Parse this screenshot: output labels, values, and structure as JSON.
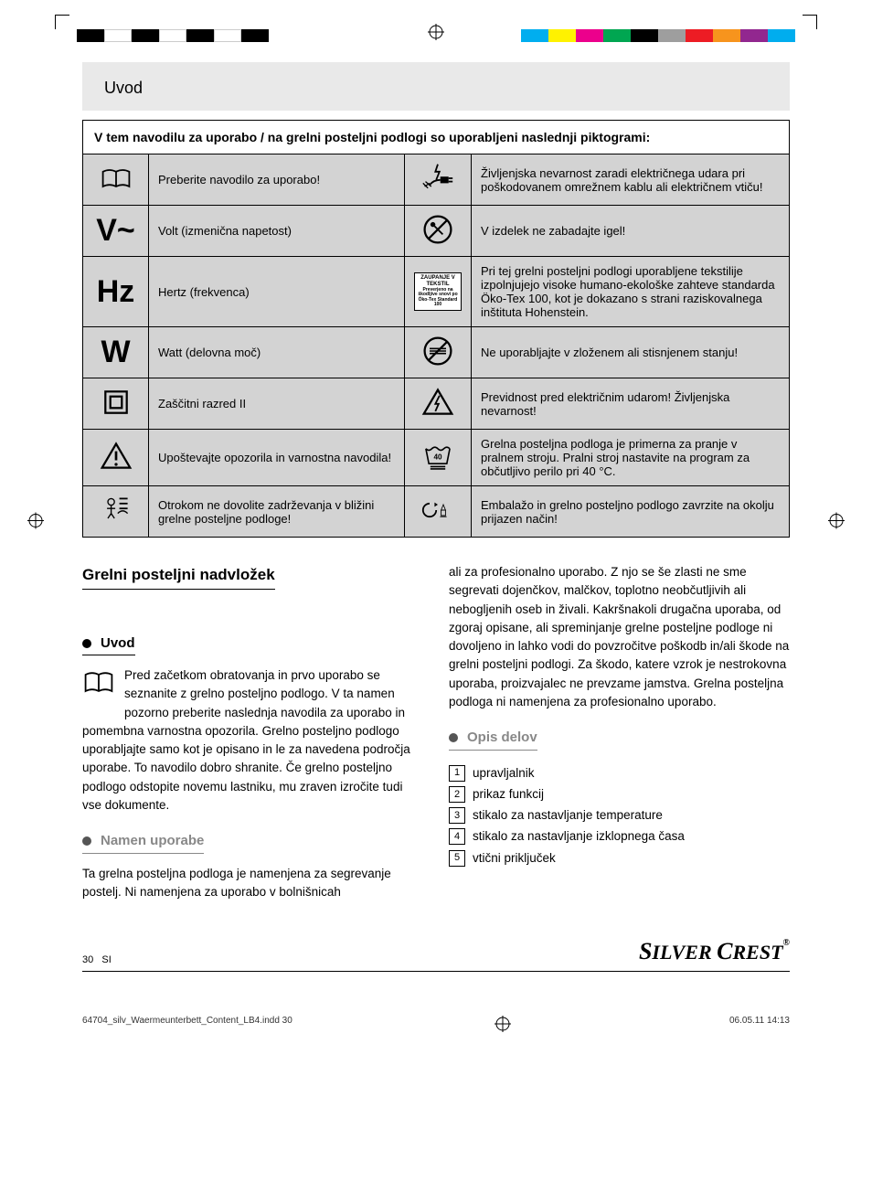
{
  "printbar_left": [
    "#000000",
    "#ffffff",
    "#000000",
    "#ffffff",
    "#000000",
    "#ffffff",
    "#000000"
  ],
  "printbar_right": [
    "#00aeef",
    "#fff200",
    "#ec008c",
    "#00a651",
    "#000000",
    "#9e9e9e",
    "#ed1c24",
    "#f7941d",
    "#92278f",
    "#00adee"
  ],
  "header": "Uvod",
  "table_title": "V tem navodilu za uporabo / na grelni posteljni podlogi so uporabljeni naslednji piktogrami:",
  "rows": [
    {
      "l_icon": "book",
      "l_text": "Preberite navodilo za uporabo!",
      "r_icon": "shock-plug",
      "r_text": "Življenjska nevarnost zaradi električnega udara pri poškodovanem omrežnem kablu ali električnem vtiču!"
    },
    {
      "l_icon": "V~",
      "l_text": "Volt (izmenična napetost)",
      "r_icon": "no-pin",
      "r_text": "V izdelek ne zabadajte igel!"
    },
    {
      "l_icon": "Hz",
      "l_text": "Hertz (frekvenca)",
      "r_icon": "oeko",
      "r_text": "Pri tej grelni posteljni podlogi uporabljene tekstilije izpolnjujejo visoke humano-ekološke zahteve standarda Öko-Tex 100, kot je dokazano s strani raziskovalnega inštituta Hohenstein."
    },
    {
      "l_icon": "W",
      "l_text": "Watt (delovna moč)",
      "r_icon": "no-fold",
      "r_text": "Ne uporabljajte v zloženem ali stisnjenem stanju!"
    },
    {
      "l_icon": "class2",
      "l_text": "Zaščitni razred II",
      "r_icon": "hv-tri",
      "r_text": "Previdnost pred električnim udarom! Življenjska nevarnost!"
    },
    {
      "l_icon": "warn-tri",
      "l_text": "Upoštevajte opozorila in varnostna navodila!",
      "r_icon": "wash40",
      "r_text": "Grelna posteljna podloga je primerna za pranje v pralnem stroju. Pralni stroj nastavite na program za občutljivo perilo pri 40 °C."
    },
    {
      "l_icon": "no-child",
      "l_text": "Otrokom ne dovolite zadrževanja v bližini grelne posteljne podloge!",
      "r_icon": "recycle",
      "r_text": "Embalažo in grelno posteljno podlogo zavrzite na okolju prijazen način!"
    }
  ],
  "title": "Grelni posteljni nadvložek",
  "sec_intro": "Uvod",
  "intro_p1": "Pred začetkom obratovanja in prvo uporabo se seznanite z grelno posteljno podlogo. V ta namen pozorno preberite naslednja navodila za uporabo in pomembna varnostna opozorila. Grelno posteljno podlogo uporabljajte samo kot je opisano in le za navedena področja uporabe. To navodilo dobro shranite. Če grelno posteljno podlogo odstopite novemu lastniku, mu zraven izročite tudi vse dokumente.",
  "sec_use": "Namen uporabe",
  "use_p1": "Ta grelna posteljna podloga je namenjena za segrevanje postelj. Ni namenjena za uporabo v bolnišnicah",
  "use_p2": "ali za profesionalno uporabo. Z njo se še zlasti ne sme segrevati dojenčkov, malčkov, toplotno neobčutljivih ali nebogljenih oseb in živali. Kakršnakoli drugačna uporaba, od zgoraj opisane, ali spreminjanje grelne posteljne podloge ni dovoljeno in lahko vodi do povzročitve poškodb in/ali škode na grelni posteljni podlogi. Za škodo, katere vzrok je nestrokovna uporaba, proizvajalec ne prevzame jamstva. Grelna posteljna podloga ni namenjena za profesionalno uporabo.",
  "sec_parts": "Opis delov",
  "parts": [
    "upravljalnik",
    "prikaz funkcij",
    "stikalo za nastavljanje temperature",
    "stikalo za nastavljanje izklopnega časa",
    "vtični priključek"
  ],
  "page_num": "30",
  "page_lang": "SI",
  "brand": "SilverCrest",
  "indd": "64704_silv_Waermeunterbett_Content_LB4.indd   30",
  "timestamp": "06.05.11   14:13",
  "oeko_label": "ZAUPANJE V TEKSTIL"
}
